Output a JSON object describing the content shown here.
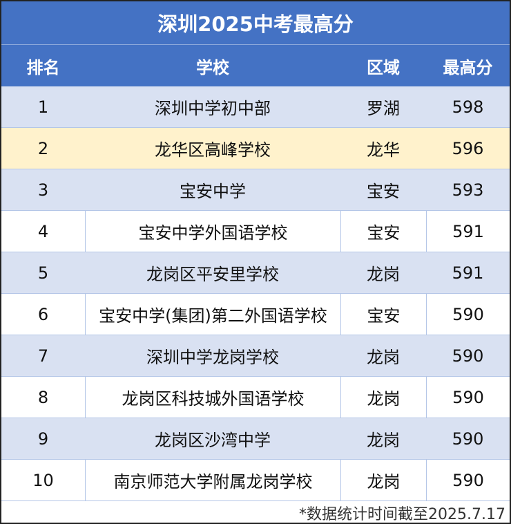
{
  "title": "深圳2025中考最高分",
  "headers": {
    "rank": "排名",
    "school": "学校",
    "district": "区域",
    "score": "最高分"
  },
  "rows": [
    {
      "rank": "1",
      "school": "深圳中学初中部",
      "district": "罗湖",
      "score": "598"
    },
    {
      "rank": "2",
      "school": "龙华区高峰学校",
      "district": "龙华",
      "score": "596"
    },
    {
      "rank": "3",
      "school": "宝安中学",
      "district": "宝安",
      "score": "593"
    },
    {
      "rank": "4",
      "school": "宝安中学外国语学校",
      "district": "宝安",
      "score": "591"
    },
    {
      "rank": "5",
      "school": "龙岗区平安里学校",
      "district": "龙岗",
      "score": "591"
    },
    {
      "rank": "6",
      "school": "宝安中学(集团)第二外国语学校",
      "district": "宝安",
      "score": "590"
    },
    {
      "rank": "7",
      "school": "深圳中学龙岗学校",
      "district": "龙岗",
      "score": "590"
    },
    {
      "rank": "8",
      "school": "龙岗区科技城外国语学校",
      "district": "龙岗",
      "score": "590"
    },
    {
      "rank": "9",
      "school": "龙岗区沙湾中学",
      "district": "龙岗",
      "score": "590"
    },
    {
      "rank": "10",
      "school": "南京师范大学附属龙岗学校",
      "district": "龙岗",
      "score": "590"
    }
  ],
  "footer": "*数据统计时间截至2025.7.17",
  "colors": {
    "header": "#4472C4",
    "alt_row": "#D9E1F2",
    "highlight_row": "#FFF2CC"
  }
}
